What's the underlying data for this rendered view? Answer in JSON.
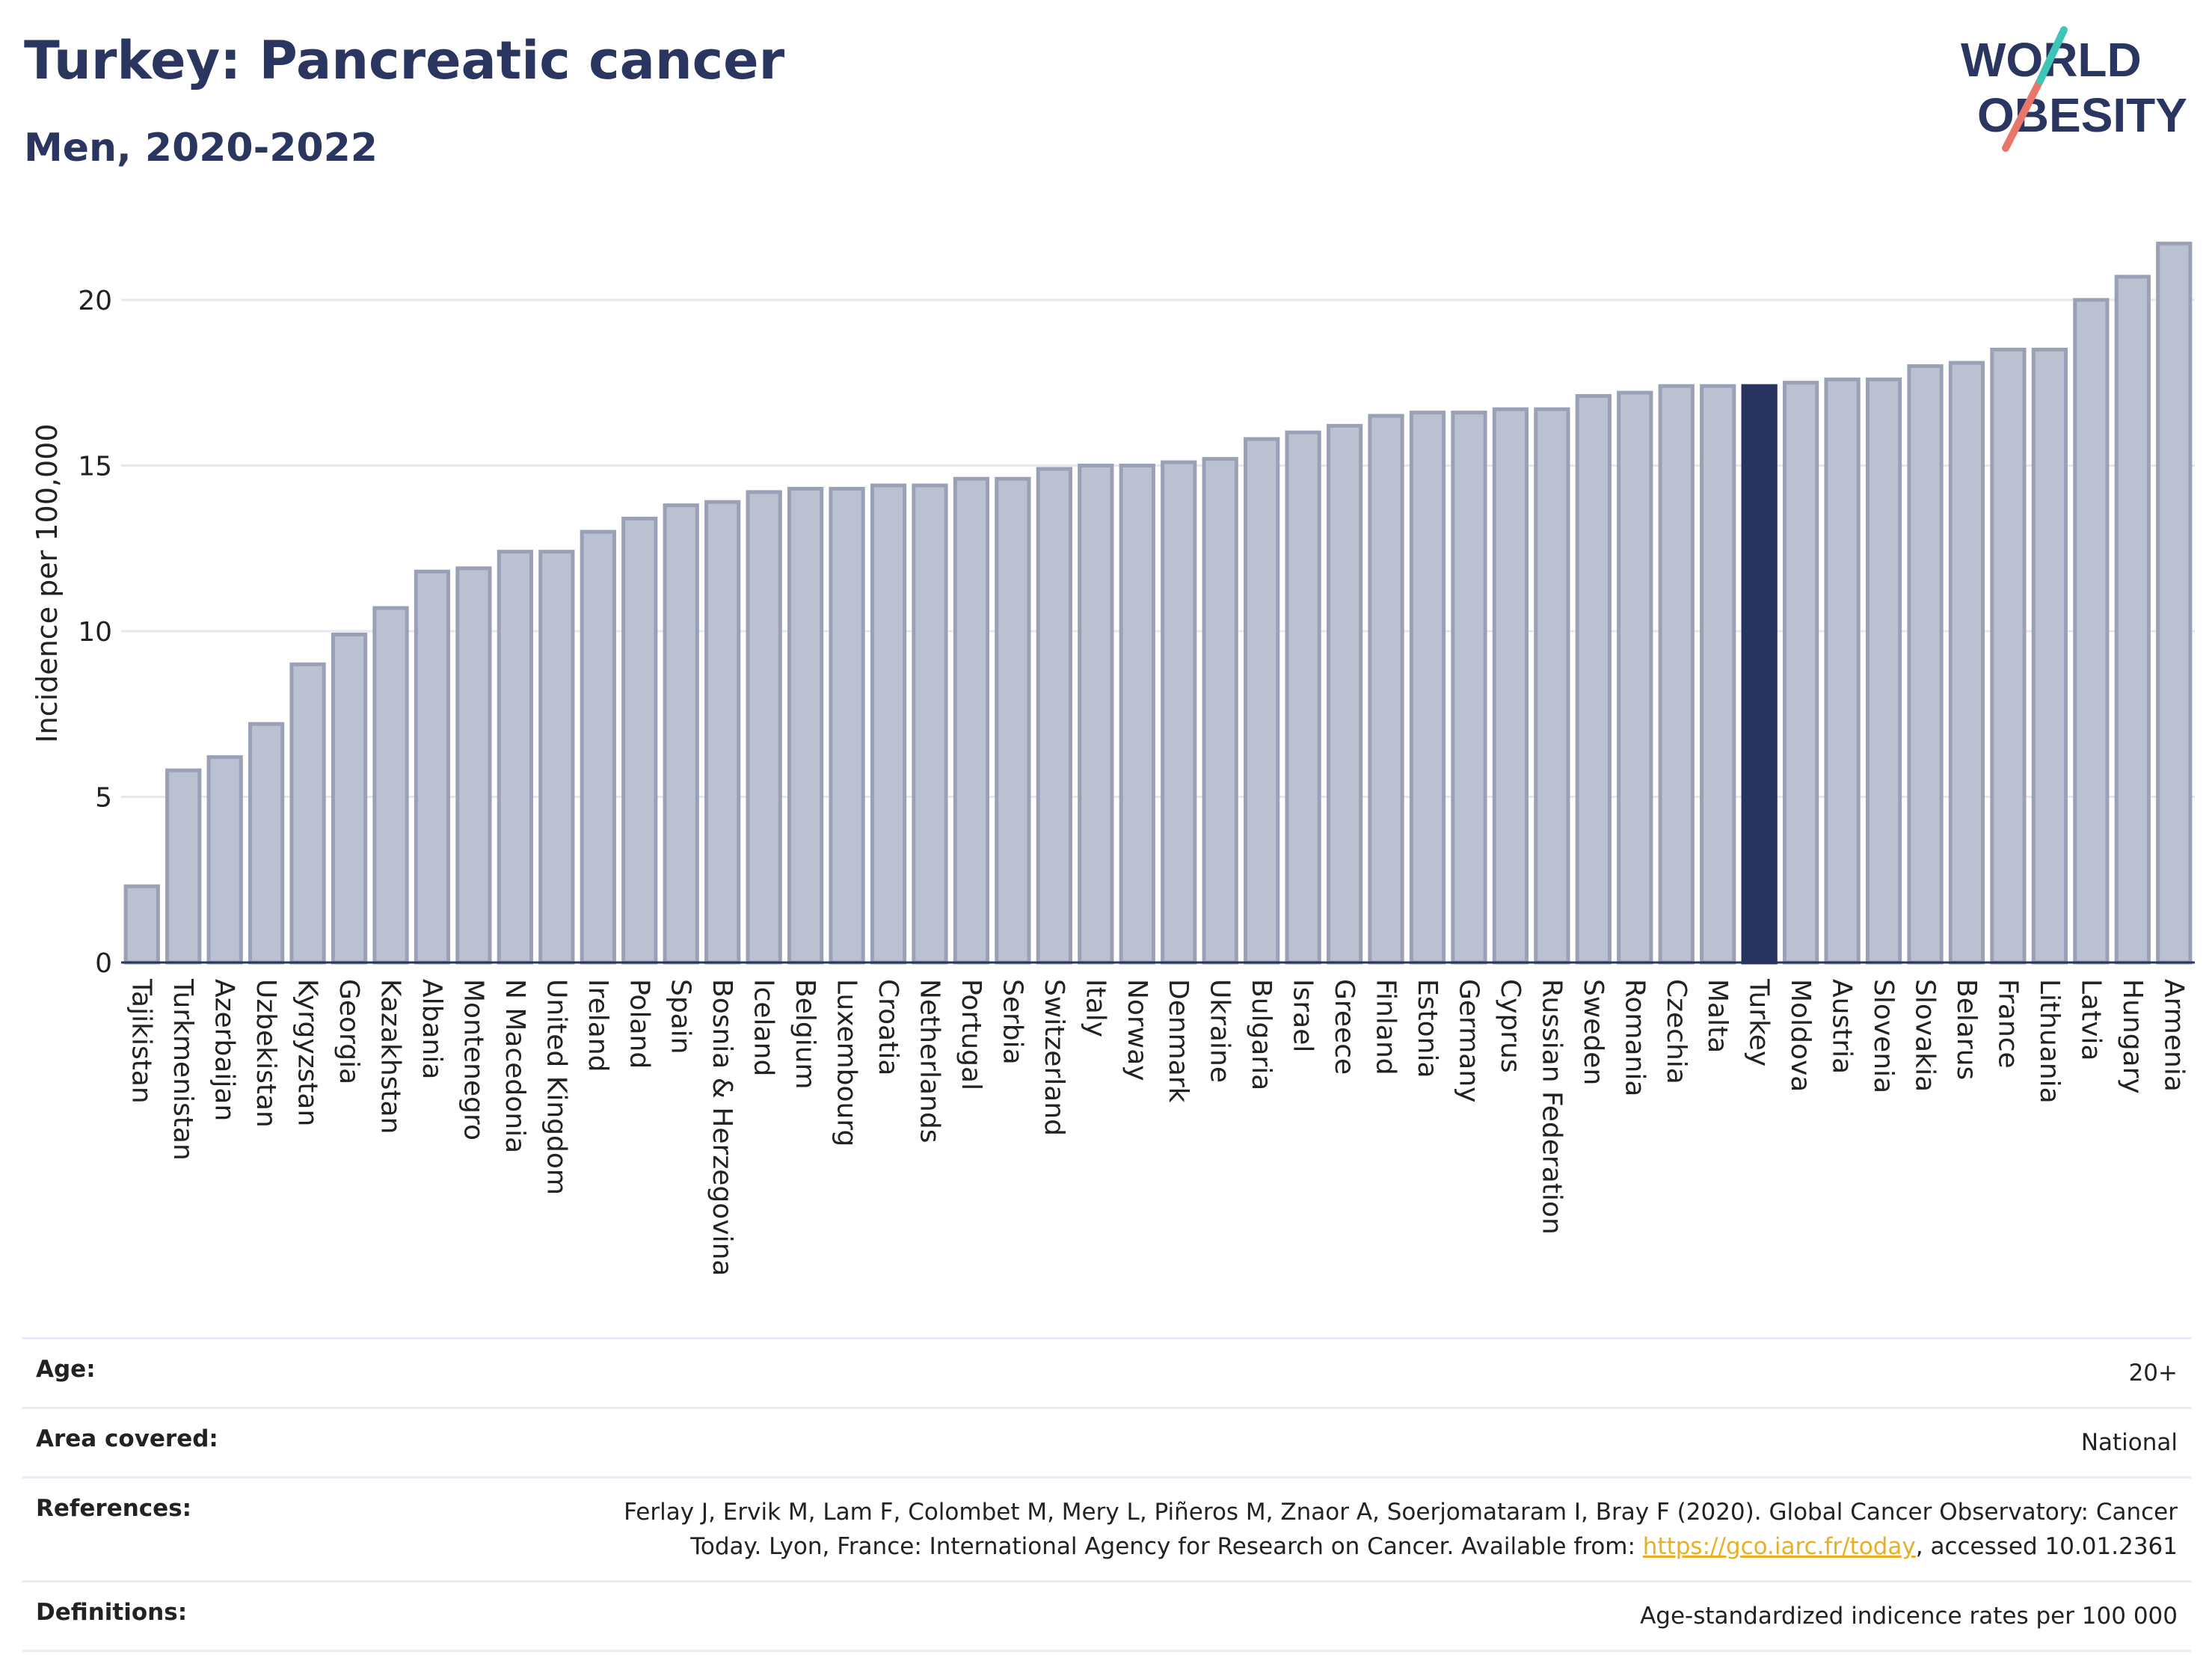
{
  "title": "Turkey: Pancreatic cancer",
  "subtitle": "Men, 2020-2022",
  "logo": {
    "line1": "WORLD",
    "line2": "OBESITY"
  },
  "colors": {
    "bar": "#bcc1d1",
    "bar_border": "#9aa1b7",
    "highlight": "#283460",
    "grid": "#e6e8ee",
    "link": "#e8b024"
  },
  "chart_data": {
    "type": "bar",
    "ylabel": "Incidence per 100,000",
    "ylim": [
      0,
      22
    ],
    "yticks": [
      0,
      5,
      10,
      15,
      20
    ],
    "highlight": "Turkey",
    "categories": [
      "Tajikistan",
      "Turkmenistan",
      "Azerbaijan",
      "Uzbekistan",
      "Kyrgyzstan",
      "Georgia",
      "Kazakhstan",
      "Albania",
      "Montenegro",
      "N Macedonia",
      "United Kingdom",
      "Ireland",
      "Poland",
      "Spain",
      "Bosnia & Herzegovina",
      "Iceland",
      "Belgium",
      "Luxembourg",
      "Croatia",
      "Netherlands",
      "Portugal",
      "Serbia",
      "Switzerland",
      "Italy",
      "Norway",
      "Denmark",
      "Ukraine",
      "Bulgaria",
      "Israel",
      "Greece",
      "Finland",
      "Estonia",
      "Germany",
      "Cyprus",
      "Russian Federation",
      "Sweden",
      "Romania",
      "Czechia",
      "Malta",
      "Turkey",
      "Moldova",
      "Austria",
      "Slovenia",
      "Slovakia",
      "Belarus",
      "France",
      "Lithuania",
      "Latvia",
      "Hungary",
      "Armenia"
    ],
    "values": [
      2.3,
      5.8,
      6.2,
      7.2,
      9.0,
      9.9,
      10.7,
      11.8,
      11.9,
      12.4,
      12.4,
      13.0,
      13.4,
      13.8,
      13.9,
      14.2,
      14.3,
      14.3,
      14.4,
      14.4,
      14.6,
      14.6,
      14.9,
      15.0,
      15.0,
      15.1,
      15.2,
      15.8,
      16.0,
      16.2,
      16.5,
      16.6,
      16.6,
      16.7,
      16.7,
      17.1,
      17.2,
      17.4,
      17.4,
      17.4,
      17.5,
      17.6,
      17.6,
      18.0,
      18.1,
      18.5,
      18.5,
      20.0,
      20.7,
      21.7
    ]
  },
  "info": {
    "age_label": "Age:",
    "age_value": "20+",
    "area_label": "Area covered:",
    "area_value": "National",
    "ref_label": "References:",
    "ref_text_1": "Ferlay J, Ervik M, Lam F, Colombet M, Mery L, Piñeros M, Znaor A, Soerjomataram I, Bray F (2020). Global Cancer Observatory: Cancer",
    "ref_text_2": "Today. Lyon, France: International Agency for Research on Cancer. Available from: ",
    "ref_link": "https://gco.iarc.fr/today",
    "ref_text_3": ", accessed 10.01.2361",
    "def_label": "Definitions:",
    "def_value": "Age-standardized indicence rates per 100 000"
  }
}
